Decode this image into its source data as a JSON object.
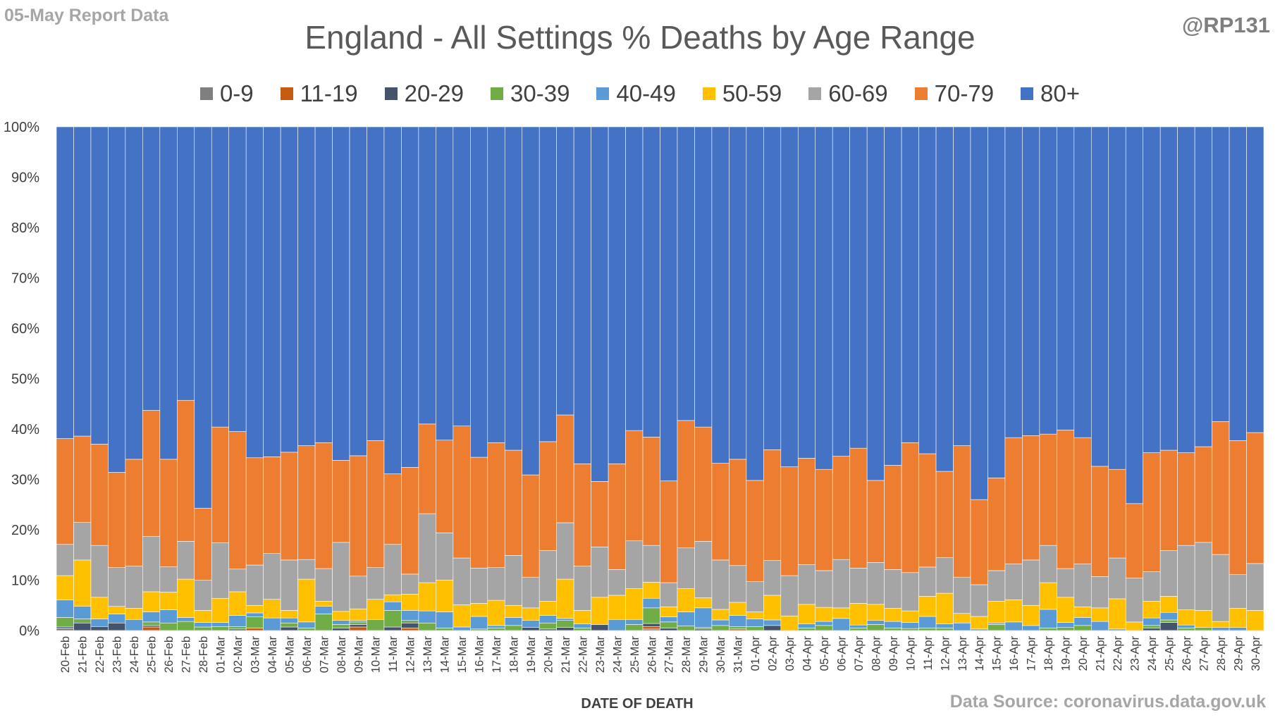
{
  "header": {
    "report_note": "05-May Report Data",
    "handle": "@RP131",
    "source": "Data Source: coronavirus.data.gov.uk"
  },
  "chart_data": {
    "type": "bar",
    "stacked": "100%",
    "title": "England - All Settings % Deaths by Age Range",
    "xlabel": "DATE OF DEATH",
    "ylabel": "",
    "ylim": [
      0,
      100
    ],
    "yticks": [
      "0%",
      "10%",
      "20%",
      "30%",
      "40%",
      "50%",
      "60%",
      "70%",
      "80%",
      "90%",
      "100%"
    ],
    "legend_position": "top",
    "grid": false,
    "categories": [
      "20-Feb",
      "21-Feb",
      "22-Feb",
      "23-Feb",
      "24-Feb",
      "25-Feb",
      "26-Feb",
      "27-Feb",
      "28-Feb",
      "01-Mar",
      "02-Mar",
      "03-Mar",
      "04-Mar",
      "05-Mar",
      "06-Mar",
      "07-Mar",
      "08-Mar",
      "09-Mar",
      "10-Mar",
      "11-Mar",
      "12-Mar",
      "13-Mar",
      "14-Mar",
      "15-Mar",
      "16-Mar",
      "17-Mar",
      "18-Mar",
      "19-Mar",
      "20-Mar",
      "21-Mar",
      "22-Mar",
      "23-Mar",
      "24-Mar",
      "25-Mar",
      "26-Mar",
      "27-Mar",
      "28-Mar",
      "29-Mar",
      "30-Mar",
      "31-Mar",
      "01-Apr",
      "02-Apr",
      "03-Apr",
      "04-Apr",
      "05-Apr",
      "06-Apr",
      "07-Apr",
      "08-Apr",
      "09-Apr",
      "10-Apr",
      "11-Apr",
      "12-Apr",
      "13-Apr",
      "14-Apr",
      "15-Apr",
      "16-Apr",
      "17-Apr",
      "18-Apr",
      "19-Apr",
      "20-Apr",
      "21-Apr",
      "22-Apr",
      "23-Apr",
      "24-Apr",
      "25-Apr",
      "26-Apr",
      "27-Apr",
      "28-Apr",
      "29-Apr",
      "30-Apr"
    ],
    "series": [
      {
        "name": "0-9",
        "color": "#7f7f7f",
        "values": [
          0.5,
          0,
          0,
          0,
          0,
          0,
          0,
          0,
          0,
          0,
          0,
          0,
          0,
          0,
          0,
          0,
          0,
          0,
          0,
          0,
          0,
          0,
          0,
          0,
          0,
          0,
          0,
          0,
          0,
          0,
          0,
          0,
          0,
          0,
          0.3,
          0,
          0,
          0,
          0,
          0,
          0,
          0,
          0,
          0,
          0,
          0,
          0,
          0,
          0,
          0,
          0,
          0,
          0,
          0,
          0,
          0,
          0,
          0,
          0,
          0,
          0,
          0,
          0,
          0,
          0,
          0,
          0,
          0,
          0,
          0
        ]
      },
      {
        "name": "11-19",
        "color": "#c55a11",
        "values": [
          0,
          0,
          0,
          0,
          0,
          0.7,
          0,
          0,
          0,
          0,
          0,
          0.5,
          0,
          0,
          0,
          0,
          0,
          0.7,
          0,
          0,
          0.5,
          0,
          0,
          0,
          0,
          0,
          0,
          0,
          0,
          0,
          0,
          0,
          0,
          0,
          0.5,
          0,
          0,
          0,
          0,
          0.3,
          0,
          0,
          0,
          0,
          0,
          0,
          0,
          0,
          0,
          0,
          0,
          0,
          0,
          0,
          0,
          0,
          0,
          0,
          0,
          0,
          0,
          0,
          0,
          0,
          0,
          0,
          0,
          0,
          0,
          0
        ]
      },
      {
        "name": "20-29",
        "color": "#44546a",
        "values": [
          0.3,
          1.5,
          0.8,
          1.5,
          0,
          0.3,
          0,
          0,
          0,
          0,
          0.3,
          0,
          0,
          0.7,
          0,
          0,
          0.5,
          0.5,
          0,
          0.7,
          1,
          0,
          0,
          0,
          0,
          0,
          0,
          0.6,
          0.3,
          0.6,
          0,
          1.2,
          0,
          0,
          0.6,
          0.5,
          0,
          0.3,
          0,
          0,
          0,
          1,
          0,
          0,
          0,
          0,
          0,
          0,
          0,
          0,
          0,
          0,
          0,
          0,
          0,
          0,
          0,
          0,
          0,
          0,
          0,
          0,
          0,
          0.5,
          1.6,
          0,
          0,
          0,
          0,
          0
        ]
      },
      {
        "name": "30-39",
        "color": "#70ad47",
        "values": [
          1.8,
          0.8,
          0,
          0,
          0,
          0.7,
          1.5,
          1.8,
          0.7,
          0.8,
          0.5,
          2.2,
          0,
          0.8,
          0.5,
          3.3,
          0.7,
          0.5,
          2.2,
          3.3,
          0.5,
          1.5,
          0.5,
          0,
          0.3,
          0.5,
          1,
          0,
          1.2,
          1.4,
          0.5,
          0,
          0,
          1.2,
          3.1,
          1.2,
          0.9,
          0.3,
          1,
          0.5,
          0.8,
          0,
          0,
          0.5,
          1,
          0,
          0.5,
          1.2,
          0.5,
          0.4,
          0.5,
          0.5,
          0,
          0,
          1.2,
          0,
          0,
          0.5,
          0.6,
          1,
          0,
          0,
          0,
          0.5,
          0.5,
          0.5,
          0.6,
          0,
          0,
          0
        ]
      },
      {
        "name": "40-49",
        "color": "#5b9bd5",
        "values": [
          3.5,
          2.5,
          1.5,
          1.8,
          2.2,
          2,
          2.6,
          0.8,
          0.9,
          0.8,
          2.2,
          0.8,
          2.5,
          1,
          1.2,
          1.5,
          0.8,
          0.3,
          0,
          1.7,
          2,
          2.4,
          3.2,
          0.7,
          2.5,
          0.5,
          1.6,
          1.4,
          1.5,
          0.4,
          0.8,
          0,
          2.2,
          1,
          1.9,
          1,
          2.8,
          3.9,
          1.1,
          2.2,
          1.5,
          1.1,
          0,
          0.8,
          0.8,
          2.4,
          0.6,
          0.8,
          1.3,
          1.2,
          2.3,
          0.8,
          1.5,
          0.3,
          0.3,
          1.7,
          1,
          3.7,
          1,
          1.6,
          1.8,
          0.3,
          0,
          1.5,
          1.5,
          0.6,
          0,
          0.6,
          0.6,
          0
        ]
      },
      {
        "name": "50-59",
        "color": "#ffc000",
        "values": [
          4.8,
          9.2,
          4.3,
          1.5,
          2.2,
          4,
          3.5,
          7.6,
          2.4,
          4.8,
          4.7,
          1.5,
          3.7,
          1.5,
          8.5,
          1,
          1.8,
          2.3,
          4,
          1.4,
          3.2,
          5.6,
          6.3,
          4.4,
          2.6,
          5,
          2.4,
          2.5,
          2.8,
          7.8,
          2.7,
          5.4,
          4.8,
          6.1,
          3.2,
          2,
          4.6,
          2,
          2.1,
          2.6,
          1.4,
          4.9,
          2.9,
          3.9,
          2.8,
          2.1,
          4.3,
          3.2,
          2.6,
          2.3,
          4,
          6.1,
          1.9,
          2.5,
          4.3,
          4.4,
          4,
          5.3,
          5,
          2.1,
          2.7,
          6,
          1.7,
          3.3,
          3.2,
          3,
          3.4,
          1.2,
          3.8,
          4
        ]
      },
      {
        "name": "60-69",
        "color": "#a5a5a5",
        "values": [
          6.2,
          7.5,
          10.3,
          7.7,
          8.4,
          11,
          5,
          7.5,
          6,
          11,
          4.5,
          8,
          9.1,
          10,
          3.9,
          6.5,
          13.7,
          6.5,
          6.3,
          10,
          4,
          13.7,
          9.4,
          9.3,
          7,
          6.5,
          9.9,
          6.1,
          10.1,
          11.2,
          8.8,
          10,
          5.1,
          9.5,
          7.3,
          4.8,
          8.1,
          11.2,
          9.8,
          7.3,
          6,
          6.9,
          8,
          7.9,
          7.3,
          9.6,
          7,
          8.3,
          7.7,
          7.6,
          5.8,
          7.1,
          7.2,
          6.3,
          6.1,
          7.1,
          9,
          7.4,
          5.7,
          8.5,
          6.2,
          8.1,
          8.7,
          5.9,
          9.1,
          12.8,
          13.5,
          13.3,
          6.7,
          9.3
        ]
      },
      {
        "name": "70-79",
        "color": "#ed7d31",
        "values": [
          21,
          17.1,
          20.1,
          18.9,
          21.2,
          25,
          21.3,
          28,
          14.3,
          23,
          27.3,
          21.3,
          19.2,
          21.4,
          22.6,
          25,
          16.3,
          23.9,
          25.2,
          14,
          21.2,
          17.8,
          18.4,
          26.2,
          22,
          24.8,
          20.9,
          20.3,
          21.6,
          21.4,
          20.3,
          13,
          21,
          21.9,
          21.5,
          20.2,
          25.3,
          22.7,
          19.2,
          21.1,
          20.1,
          22,
          21.6,
          21.1,
          20.1,
          20.5,
          23.8,
          16.3,
          20.7,
          25.8,
          22.5,
          17.1,
          26.1,
          16.9,
          18.4,
          25.1,
          24.7,
          22.1,
          27.5,
          25.1,
          21.9,
          17.6,
          14.8,
          23.6,
          19.9,
          18.4,
          19,
          26.4,
          26.6,
          26
        ]
      },
      {
        "name": "80+",
        "color": "#4472c4",
        "values": [
          61.9,
          61.4,
          63,
          68.6,
          66,
          56.3,
          65.8,
          54.3,
          75.7,
          59.6,
          60.5,
          65.7,
          65.5,
          64.6,
          63.3,
          62.7,
          66.2,
          65.3,
          62.3,
          68.9,
          67.6,
          59,
          62.2,
          59.4,
          65.6,
          62.7,
          64.2,
          69.1,
          62.5,
          57.2,
          66.9,
          70.4,
          66.9,
          60.3,
          61.6,
          70.3,
          58.3,
          59.6,
          66.8,
          66,
          70.2,
          64.1,
          67.5,
          65.8,
          68,
          65.4,
          63.8,
          70.2,
          67.2,
          62.7,
          64.9,
          68.4,
          63.3,
          74,
          69.7,
          61.7,
          61.3,
          61,
          60.2,
          61.7,
          67.4,
          68,
          74.8,
          64.7,
          64.2,
          64.7,
          63.5,
          58.5,
          62.3,
          60.7
        ]
      }
    ]
  }
}
